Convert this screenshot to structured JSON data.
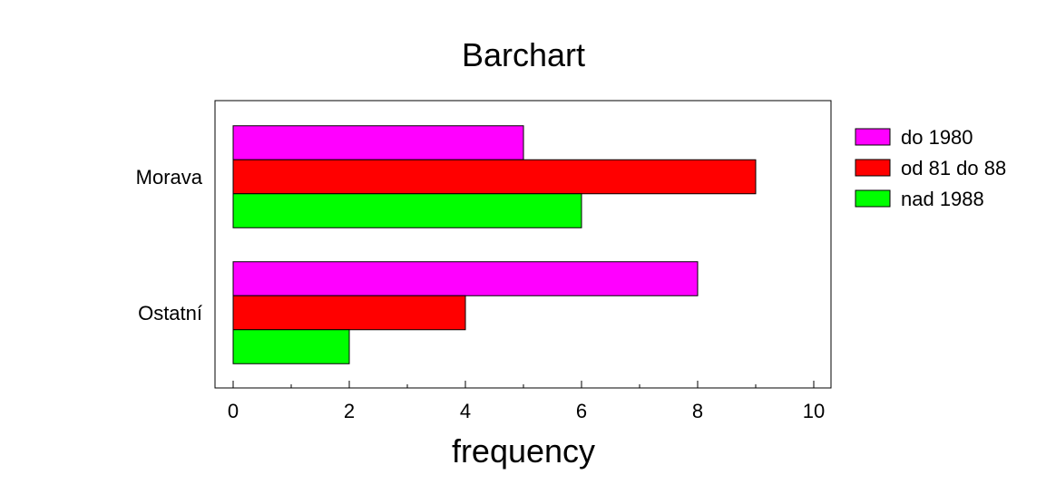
{
  "chart_data": {
    "type": "bar",
    "orientation": "horizontal",
    "title": "Barchart",
    "xlabel": "frequency",
    "ylabel": "",
    "categories": [
      "Morava",
      "Ostatní"
    ],
    "series": [
      {
        "name": "do 1980",
        "color": "#ff00ff",
        "values": [
          5,
          8
        ]
      },
      {
        "name": "od 81 do 88",
        "color": "#ff0000",
        "values": [
          9,
          4
        ]
      },
      {
        "name": "nad 1988",
        "color": "#00ff00",
        "values": [
          6,
          2
        ]
      }
    ],
    "xlim": [
      -0.3,
      10.3
    ],
    "xticks": [
      0,
      2,
      4,
      6,
      8,
      10
    ],
    "xtick_labels": [
      "0",
      "2",
      "4",
      "6",
      "8",
      "10"
    ],
    "grid": false,
    "legend_position": "right"
  }
}
